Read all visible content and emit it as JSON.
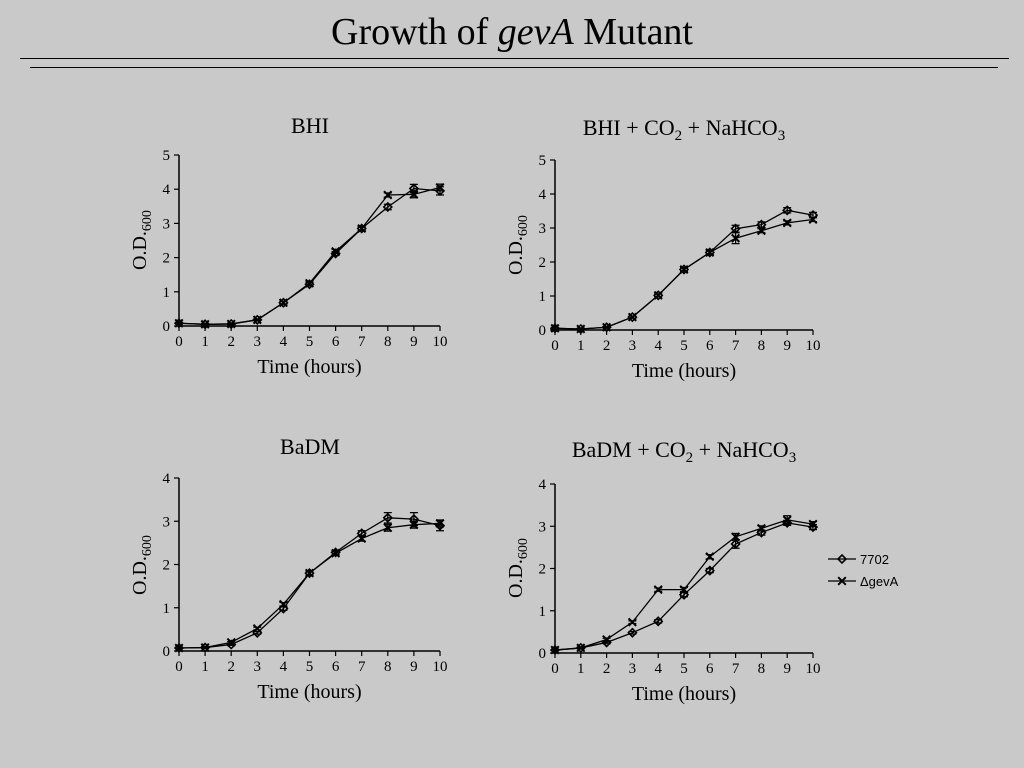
{
  "slide": {
    "title_prefix": "Growth of ",
    "title_italic": "gevA",
    "title_suffix": " Mutant"
  },
  "legend": {
    "items": [
      {
        "label": "7702",
        "marker": "diamond"
      },
      {
        "label": "ΔgevA",
        "marker": "x"
      }
    ]
  },
  "chart_data": [
    {
      "type": "line",
      "title": "BHI",
      "title_parts": [
        {
          "t": "BHI",
          "sub": false
        }
      ],
      "xlabel": "Time (hours)",
      "ylabel": "O.D.600",
      "xlim": [
        0,
        10
      ],
      "ylim": [
        0,
        5
      ],
      "x": [
        0,
        1,
        2,
        3,
        4,
        5,
        6,
        7,
        8,
        9,
        10
      ],
      "xticks": [
        "0",
        "1",
        "2",
        "3",
        "4",
        "5",
        "6",
        "7",
        "8",
        "9",
        "10"
      ],
      "yticks": [
        "0",
        "1",
        "2",
        "3",
        "4",
        "5"
      ],
      "series": [
        {
          "name": "7702",
          "marker": "diamond",
          "values": [
            0.08,
            0.05,
            0.06,
            0.18,
            0.68,
            1.22,
            2.12,
            2.85,
            3.48,
            4.02,
            3.95
          ],
          "err": [
            0.02,
            0.02,
            0.02,
            0.02,
            0.04,
            0.05,
            0.06,
            0.06,
            0.08,
            0.12,
            0.12
          ]
        },
        {
          "name": "ΔgevA",
          "marker": "x",
          "values": [
            0.08,
            0.05,
            0.06,
            0.18,
            0.68,
            1.25,
            2.18,
            2.85,
            3.83,
            3.85,
            4.05
          ],
          "err": [
            0.02,
            0.02,
            0.02,
            0.02,
            0.04,
            0.05,
            0.06,
            0.06,
            0.06,
            0.1,
            0.1
          ]
        }
      ]
    },
    {
      "type": "line",
      "title": "BHI + CO2 + NaHCO3",
      "title_parts": [
        {
          "t": "BHI + CO",
          "sub": false
        },
        {
          "t": "2",
          "sub": true
        },
        {
          "t": " + NaHCO",
          "sub": false
        },
        {
          "t": "3",
          "sub": true
        }
      ],
      "xlabel": "Time (hours)",
      "ylabel": "O.D.600",
      "xlim": [
        0,
        10
      ],
      "ylim": [
        0,
        5
      ],
      "x": [
        0,
        1,
        2,
        3,
        4,
        5,
        6,
        7,
        8,
        9,
        10
      ],
      "xticks": [
        "0",
        "1",
        "2",
        "3",
        "4",
        "5",
        "6",
        "7",
        "8",
        "9",
        "10"
      ],
      "yticks": [
        "0",
        "1",
        "2",
        "3",
        "4",
        "5"
      ],
      "series": [
        {
          "name": "7702",
          "marker": "diamond",
          "values": [
            0.05,
            0.03,
            0.08,
            0.38,
            1.02,
            1.78,
            2.28,
            2.98,
            3.1,
            3.52,
            3.38
          ],
          "err": [
            0.02,
            0.02,
            0.02,
            0.03,
            0.04,
            0.05,
            0.06,
            0.1,
            0.08,
            0.08,
            0.08
          ]
        },
        {
          "name": "ΔgevA",
          "marker": "x",
          "values": [
            0.05,
            0.03,
            0.08,
            0.38,
            1.02,
            1.78,
            2.28,
            2.7,
            2.92,
            3.15,
            3.25
          ],
          "err": [
            0.02,
            0.02,
            0.02,
            0.03,
            0.04,
            0.05,
            0.06,
            0.16,
            0.06,
            0.06,
            0.06
          ]
        }
      ]
    },
    {
      "type": "line",
      "title": "BaDM",
      "title_parts": [
        {
          "t": "BaDM",
          "sub": false
        }
      ],
      "xlabel": "Time (hours)",
      "ylabel": "O.D.600",
      "xlim": [
        0,
        10
      ],
      "ylim": [
        0,
        4
      ],
      "x": [
        0,
        1,
        2,
        3,
        4,
        5,
        6,
        7,
        8,
        9,
        10
      ],
      "xticks": [
        "0",
        "1",
        "2",
        "3",
        "4",
        "5",
        "6",
        "7",
        "8",
        "9",
        "10"
      ],
      "yticks": [
        "0",
        "1",
        "2",
        "3",
        "4"
      ],
      "series": [
        {
          "name": "7702",
          "marker": "diamond",
          "values": [
            0.07,
            0.08,
            0.15,
            0.42,
            0.98,
            1.8,
            2.28,
            2.72,
            3.08,
            3.05,
            2.9
          ],
          "err": [
            0.02,
            0.02,
            0.02,
            0.03,
            0.04,
            0.05,
            0.05,
            0.06,
            0.12,
            0.15,
            0.12
          ]
        },
        {
          "name": "ΔgevA",
          "marker": "x",
          "values": [
            0.07,
            0.08,
            0.2,
            0.52,
            1.08,
            1.8,
            2.26,
            2.6,
            2.85,
            2.92,
            2.95
          ],
          "err": [
            0.02,
            0.02,
            0.02,
            0.03,
            0.04,
            0.05,
            0.05,
            0.06,
            0.08,
            0.08,
            0.08
          ]
        }
      ]
    },
    {
      "type": "line",
      "title": "BaDM + CO2 + NaHCO3",
      "title_parts": [
        {
          "t": "BaDM + CO",
          "sub": false
        },
        {
          "t": "2",
          "sub": true
        },
        {
          "t": " + NaHCO",
          "sub": false
        },
        {
          "t": "3",
          "sub": true
        }
      ],
      "xlabel": "Time (hours)",
      "ylabel": "O.D.600",
      "xlim": [
        0,
        10
      ],
      "ylim": [
        0,
        4
      ],
      "x": [
        0,
        1,
        2,
        3,
        4,
        5,
        6,
        7,
        8,
        9,
        10
      ],
      "xticks": [
        "0",
        "1",
        "2",
        "3",
        "4",
        "5",
        "6",
        "7",
        "8",
        "9",
        "10"
      ],
      "yticks": [
        "0",
        "1",
        "2",
        "3",
        "4"
      ],
      "series": [
        {
          "name": "7702",
          "marker": "diamond",
          "values": [
            0.07,
            0.12,
            0.25,
            0.48,
            0.75,
            1.38,
            1.95,
            2.58,
            2.85,
            3.08,
            2.98
          ],
          "err": [
            0.02,
            0.02,
            0.03,
            0.03,
            0.04,
            0.05,
            0.05,
            0.1,
            0.06,
            0.06,
            0.06
          ]
        },
        {
          "name": "ΔgevA",
          "marker": "x",
          "values": [
            0.07,
            0.12,
            0.32,
            0.73,
            1.5,
            1.5,
            2.28,
            2.75,
            2.95,
            3.15,
            3.05
          ],
          "err": [
            0.02,
            0.02,
            0.03,
            0.03,
            0.04,
            0.05,
            0.05,
            0.08,
            0.06,
            0.1,
            0.06
          ]
        }
      ]
    }
  ]
}
